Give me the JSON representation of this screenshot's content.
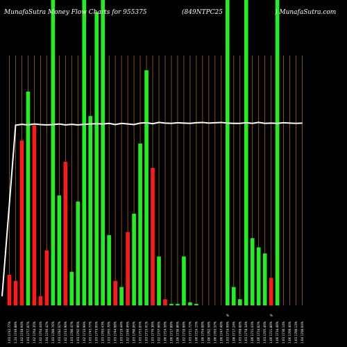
{
  "header": {
    "left": "MunafaSutra  Money Flow  Charts for 955375",
    "center": "(849NTPC25",
    "right": ") MunafaSutra.com"
  },
  "colors": {
    "background": "#000000",
    "gridline": "#a0661e",
    "up": "#22ee22",
    "down": "#ff1a1a",
    "line": "#ffffff",
    "text": "#ffffff"
  },
  "chart_data": {
    "type": "bar",
    "grid": true,
    "ylim": [
      0,
      100
    ],
    "x": [
      "1.03 1742.77%",
      "1.24 1749.88%",
      "1.02 1748.94%",
      "1.03 1777.87%",
      "1.02 1764.35%",
      "1.02 1764.44%",
      "1.04 1746.42%",
      "1.03 1780.76%",
      "1.03 1782.07%",
      "1.02 1743.90%",
      "1.03 1780.47%",
      "1.03 1792.96%",
      "1.02 1733.99%",
      "1.03 1745.77%",
      "1.03 1773.95%",
      "1.03 1785.43%",
      "1.03 1765.70%",
      "1.03 1744.98%",
      "1.03 1719.44%",
      "1.02 1740.46%",
      "1.03 1790.06%",
      "1.03 1753.05%",
      "1.03 1715.91%",
      "1.03 1776.38%",
      "1.02 1737.96%",
      "1.06 1724.56%",
      "1.06 1717.80%",
      "1.06 1730.86%",
      "1.02 1710.98%",
      "1.03 1711.72%",
      "1.06 1724.15%",
      "1.06 1754.08%",
      "1.06 1702.58%",
      "1.06 1703.57%",
      "1.06 1747.40%",
      "1.03 1714.99%",
      "1.08 1717.24%",
      "1.03 1768.00%",
      "1.03 1778.34%",
      "1.06 1731.43%",
      "1.06 1724.82%",
      "1.03 1705.40%",
      "1.06 1721.80%",
      "1.06 1734.40%",
      "1.03 1730.14%",
      "1.06 1709.40%",
      "1.03 1700.13%",
      "1.04 1700.04%"
    ],
    "series": [
      {
        "color": "up-down",
        "values": [
          10,
          8,
          54,
          70,
          59,
          3,
          18,
          100,
          36,
          47,
          11,
          34,
          100,
          62,
          96,
          100,
          23,
          8,
          6,
          24,
          30,
          53,
          77,
          45,
          16,
          2,
          0.5,
          0.5,
          16,
          1,
          0.5,
          0,
          0,
          0,
          0,
          100,
          6,
          2,
          100,
          22,
          19,
          17,
          9,
          100,
          0,
          0,
          0,
          0
        ],
        "directions": [
          "down",
          "down",
          "down",
          "up",
          "down",
          "down",
          "down",
          "up",
          "up",
          "down",
          "up",
          "up",
          "up",
          "up",
          "up",
          "up",
          "up",
          "down",
          "up",
          "down",
          "up",
          "up",
          "up",
          "down",
          "up",
          "down",
          "up",
          "up",
          "up",
          "up",
          "up",
          "up",
          "up",
          "up",
          "up",
          "up",
          "up",
          "up",
          "up",
          "up",
          "up",
          "up",
          "down",
          "up",
          "up",
          "up",
          "up",
          "up"
        ]
      },
      {
        "color": "line",
        "values": [
          3,
          59,
          59.3,
          59.1,
          59.4,
          59.2,
          59.1,
          59.2,
          59.4,
          59.1,
          59.3,
          59.1,
          59.3,
          59.4,
          59.5,
          59.4,
          59.6,
          59.2,
          59.6,
          59.4,
          59.2,
          59.7,
          59.8,
          59.5,
          59.9,
          59.7,
          59.6,
          59.8,
          59.7,
          59.6,
          59.8,
          59.9,
          59.7,
          59.8,
          59.9,
          59.7,
          59.6,
          59.6,
          59.8,
          59.6,
          59.9,
          59.6,
          59.7,
          59.6,
          59.8,
          59.7,
          59.6,
          59.7
        ]
      }
    ],
    "marks": [
      "%",
      "%"
    ]
  }
}
